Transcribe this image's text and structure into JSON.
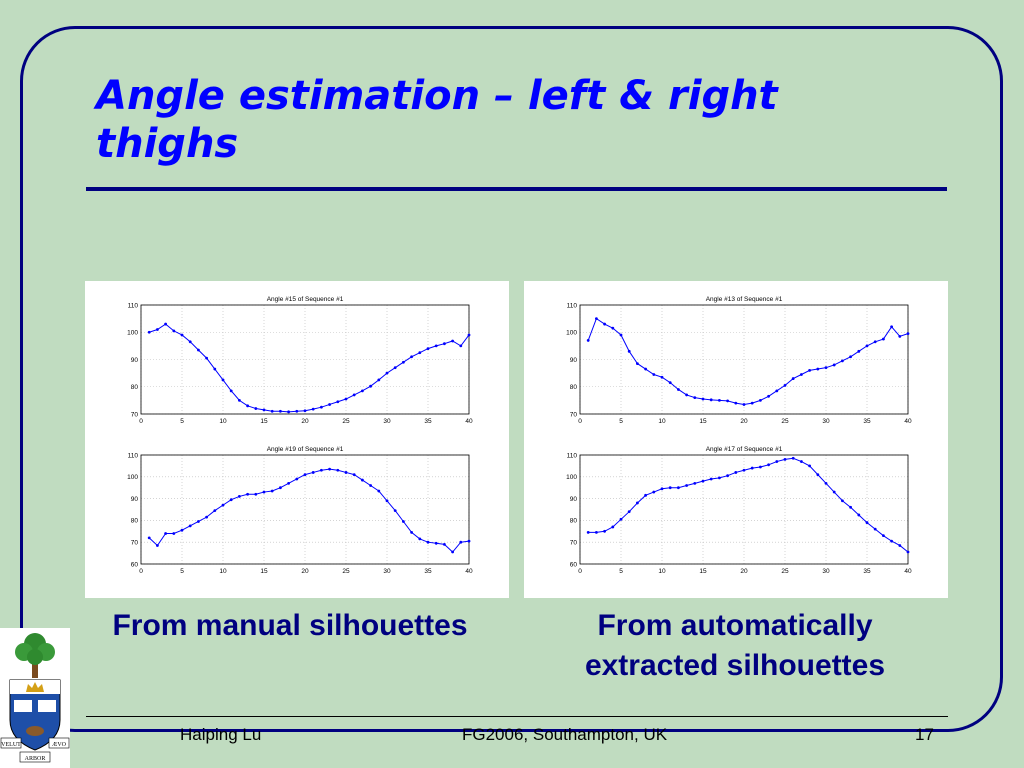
{
  "slide": {
    "title": "Angle estimation – left & right thighs",
    "caption_left": "From manual silhouettes",
    "caption_right_line1": "From automatically",
    "caption_right_line2": "extracted silhouettes",
    "footer_author": "Haiping Lu",
    "footer_event": "FG2006, Southampton, UK",
    "page_number": "17",
    "colors": {
      "background": "#c0dcc0",
      "title": "#0000ff",
      "caption": "#000080",
      "frame": "#000080",
      "series": "#0000ff"
    },
    "logo": {
      "icon": "university-crest-icon",
      "motto_left": "VELUT",
      "motto_right": "ÆVO",
      "motto_bottom": "ARBOR"
    }
  },
  "chart_data": [
    {
      "type": "line",
      "title": "Angle #15 of Sequence #1",
      "x": [
        1,
        2,
        3,
        4,
        5,
        6,
        7,
        8,
        9,
        10,
        11,
        12,
        13,
        14,
        15,
        16,
        17,
        18,
        19,
        20,
        21,
        22,
        23,
        24,
        25,
        26,
        27,
        28,
        29,
        30,
        31,
        32,
        33,
        34,
        35,
        36,
        37,
        38,
        39,
        40
      ],
      "values": [
        100,
        101,
        103,
        100.5,
        99,
        96.5,
        93.5,
        90.5,
        86.5,
        82.5,
        78.5,
        75,
        73,
        72,
        71.5,
        71,
        71,
        70.8,
        71,
        71.2,
        71.8,
        72.5,
        73.5,
        74.5,
        75.5,
        77,
        78.5,
        80.2,
        82.5,
        85,
        87,
        89,
        91,
        92.5,
        94,
        95,
        95.8,
        96.8,
        95,
        99
      ],
      "xlim": [
        0,
        40
      ],
      "ylim": [
        70,
        110
      ],
      "xticks": [
        0,
        5,
        10,
        15,
        20,
        25,
        30,
        35,
        40
      ],
      "yticks": [
        70,
        80,
        90,
        100,
        110
      ],
      "grid": true
    },
    {
      "type": "line",
      "title": "Angle #19 of Sequence #1",
      "x": [
        1,
        2,
        3,
        4,
        5,
        6,
        7,
        8,
        9,
        10,
        11,
        12,
        13,
        14,
        15,
        16,
        17,
        18,
        19,
        20,
        21,
        22,
        23,
        24,
        25,
        26,
        27,
        28,
        29,
        30,
        31,
        32,
        33,
        34,
        35,
        36,
        37,
        38,
        39,
        40
      ],
      "values": [
        72,
        68.5,
        74,
        74,
        75.5,
        77.5,
        79.5,
        81.5,
        84.5,
        87,
        89.5,
        91,
        92,
        92,
        93,
        93.5,
        95,
        97,
        99,
        101,
        102,
        103,
        103.5,
        103,
        102,
        101,
        98.5,
        96,
        93.5,
        89,
        84.5,
        79.5,
        74.5,
        71.5,
        70,
        69.5,
        69,
        65.5,
        70,
        70.5
      ],
      "xlim": [
        0,
        40
      ],
      "ylim": [
        60,
        110
      ],
      "xticks": [
        0,
        5,
        10,
        15,
        20,
        25,
        30,
        35,
        40
      ],
      "yticks": [
        60,
        70,
        80,
        90,
        100,
        110
      ],
      "grid": true
    },
    {
      "type": "line",
      "title": "Angle #13 of Sequence #1",
      "x": [
        1,
        2,
        3,
        4,
        5,
        6,
        7,
        8,
        9,
        10,
        11,
        12,
        13,
        14,
        15,
        16,
        17,
        18,
        19,
        20,
        21,
        22,
        23,
        24,
        25,
        26,
        27,
        28,
        29,
        30,
        31,
        32,
        33,
        34,
        35,
        36,
        37,
        38,
        39,
        40
      ],
      "values": [
        97,
        105,
        103,
        101.5,
        99,
        93,
        88.5,
        86.5,
        84.5,
        83.5,
        81.5,
        79,
        77,
        76,
        75.5,
        75.2,
        75,
        74.8,
        74,
        73.5,
        74,
        75,
        76.5,
        78.5,
        80.5,
        83,
        84.5,
        86,
        86.5,
        87,
        88,
        89.5,
        91,
        93,
        95,
        96.5,
        97.5,
        102,
        98.5,
        99.5
      ],
      "xlim": [
        0,
        40
      ],
      "ylim": [
        70,
        110
      ],
      "xticks": [
        0,
        5,
        10,
        15,
        20,
        25,
        30,
        35,
        40
      ],
      "yticks": [
        70,
        80,
        90,
        100,
        110
      ],
      "grid": true
    },
    {
      "type": "line",
      "title": "Angle #17 of Sequence #1",
      "x": [
        1,
        2,
        3,
        4,
        5,
        6,
        7,
        8,
        9,
        10,
        11,
        12,
        13,
        14,
        15,
        16,
        17,
        18,
        19,
        20,
        21,
        22,
        23,
        24,
        25,
        26,
        27,
        28,
        29,
        30,
        31,
        32,
        33,
        34,
        35,
        36,
        37,
        38,
        39,
        40
      ],
      "values": [
        74.5,
        74.5,
        75,
        77,
        80.5,
        84,
        88,
        91.5,
        93,
        94.5,
        95,
        95,
        96,
        97,
        98,
        99,
        99.5,
        100.5,
        102,
        103,
        104,
        104.5,
        105.5,
        107,
        108,
        108.5,
        107,
        105,
        101,
        97,
        93,
        89,
        86,
        82.5,
        79,
        76,
        73,
        70.5,
        68.5,
        65.5
      ],
      "xlim": [
        0,
        40
      ],
      "ylim": [
        60,
        110
      ],
      "xticks": [
        0,
        5,
        10,
        15,
        20,
        25,
        30,
        35,
        40
      ],
      "yticks": [
        60,
        70,
        80,
        90,
        100,
        110
      ],
      "grid": true
    }
  ]
}
